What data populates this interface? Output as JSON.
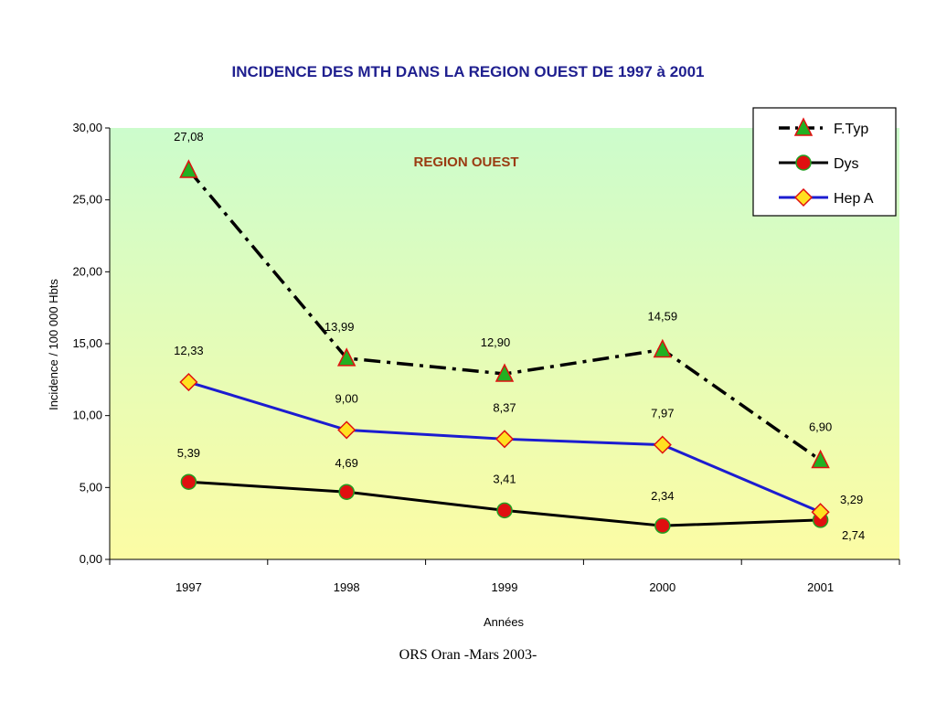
{
  "footer": "ORS Oran -Mars 2003-",
  "chart_data": {
    "type": "line",
    "title": "INCIDENCE DES MTH DANS LA REGION OUEST DE 1997 à 2001",
    "annotation": "REGION OUEST",
    "xlabel": "Années",
    "ylabel": "Incidence / 100 000 Hbts",
    "categories": [
      "1997",
      "1998",
      "1999",
      "2000",
      "2001"
    ],
    "ylim": [
      0,
      30
    ],
    "yticks": [
      0,
      5,
      10,
      15,
      20,
      25,
      30
    ],
    "ytick_labels": [
      "0,00",
      "5,00",
      "10,00",
      "15,00",
      "20,00",
      "25,00",
      "30,00"
    ],
    "grid": false,
    "legend_position": "top-right",
    "plot_background": [
      "#ccfccc",
      "#fcfca4"
    ],
    "series": [
      {
        "name": "F.Typ",
        "values": [
          27.08,
          13.99,
          12.9,
          14.59,
          6.9
        ],
        "labels": [
          "27,08",
          "13,99",
          "12,90",
          "14,59",
          "6,90"
        ],
        "color": "#000000",
        "marker": "triangle",
        "marker_fill": "#22b022",
        "marker_stroke": "#e01010",
        "line_style": "dashdot"
      },
      {
        "name": "Dys",
        "values": [
          5.39,
          4.69,
          3.41,
          2.34,
          2.74
        ],
        "labels": [
          "5,39",
          "4,69",
          "3,41",
          "2,34",
          "2,74"
        ],
        "color": "#000000",
        "marker": "circle",
        "marker_fill": "#e01010",
        "marker_stroke": "#22a022",
        "line_style": "solid"
      },
      {
        "name": "Hep A",
        "values": [
          12.33,
          9.0,
          8.37,
          7.97,
          3.29
        ],
        "labels": [
          "12,33",
          "9,00",
          "8,37",
          "7,97",
          "3,29"
        ],
        "color": "#1c1cd0",
        "marker": "diamond",
        "marker_fill": "#ffe020",
        "marker_stroke": "#e01010",
        "line_style": "solid"
      }
    ]
  }
}
